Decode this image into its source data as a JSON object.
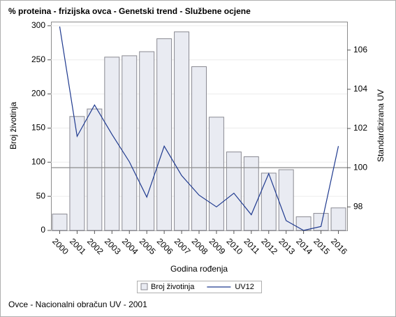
{
  "chart_data": {
    "type": "bar-line",
    "title": "% proteina - frizijska ovca - Genetski trend - Službene ocjene",
    "x_label": "Godina rođenja",
    "y_label": "Broj životinja",
    "y2_label": "Standardizirana UV",
    "footnote": "Ovce - Nacionalni obračun UV - 2001",
    "categories": [
      "2000",
      "2001",
      "2002",
      "2003",
      "2004",
      "2005",
      "2006",
      "2007",
      "2008",
      "2009",
      "2010",
      "2011",
      "2012",
      "2013",
      "2014",
      "2015",
      "2016"
    ],
    "series": [
      {
        "name": "Broj životinja",
        "type": "bar",
        "color": "#e9ebf2",
        "values": [
          24,
          167,
          178,
          254,
          256,
          262,
          281,
          291,
          240,
          166,
          115,
          108,
          84,
          89,
          20,
          25,
          33
        ]
      },
      {
        "name": "UV12",
        "type": "line",
        "axis": "y2",
        "color": "#1f3a8f",
        "values": [
          107.2,
          101.6,
          103.2,
          101.7,
          100.3,
          98.5,
          101.1,
          99.6,
          98.6,
          98.0,
          98.7,
          97.6,
          99.7,
          97.3,
          96.8,
          97.0,
          101.1
        ]
      }
    ],
    "ylim": [
      0,
      306
    ],
    "yticks": [
      0,
      50,
      100,
      150,
      200,
      250,
      300
    ],
    "y2lim": [
      96.8,
      107.45
    ],
    "y2ticks": [
      98,
      100,
      102,
      104,
      106
    ],
    "reference_line_y2": 100,
    "grid": true,
    "legend": "bottom"
  }
}
